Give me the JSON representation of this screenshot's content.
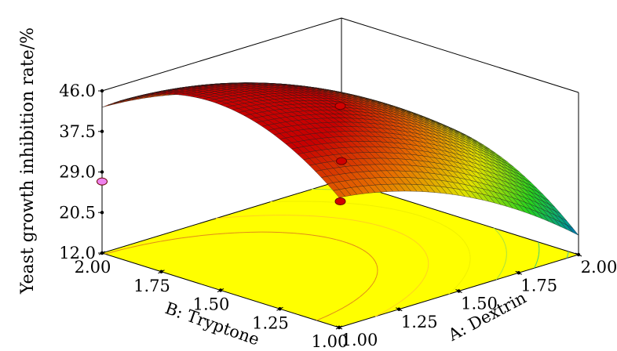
{
  "chart_data": {
    "type": "surface",
    "zlabel": "Yeast growth inhibition rate/%",
    "xlabel": "A: Dextrin",
    "ylabel": "B: Tryptone",
    "x_ticks": [
      "1.00",
      "1.25",
      "1.50",
      "1.75",
      "2.00"
    ],
    "y_ticks": [
      "1.00",
      "1.25",
      "1.50",
      "1.75",
      "2.00"
    ],
    "z_ticks": [
      "12.0",
      "20.5",
      "29.0",
      "37.5",
      "46.0"
    ],
    "xlim": [
      1.0,
      2.0
    ],
    "ylim": [
      1.0,
      2.0
    ],
    "zlim": [
      12.0,
      46.0
    ],
    "surface": {
      "model": "quadratic",
      "peak_value": 46.0,
      "corner_values": [
        {
          "A": 1.0,
          "B": 2.0,
          "z": 29.0
        },
        {
          "A": 1.0,
          "B": 1.0,
          "z": 41.0
        },
        {
          "A": 2.0,
          "B": 2.0,
          "z": 20.5
        },
        {
          "A": 2.0,
          "B": 1.0,
          "z": 14.0
        }
      ]
    },
    "design_points": [
      {
        "A": 1.5,
        "B": 1.5,
        "z": 43.0,
        "color": "#d10000"
      },
      {
        "A": 1.5,
        "B": 1.5,
        "z": 23.0,
        "color": "#d10000"
      },
      {
        "A": 2.0,
        "B": 2.0,
        "z": 16.0,
        "color": "#d10000"
      },
      {
        "A": 1.0,
        "B": 2.0,
        "z": 27.0,
        "color": "#ee82ee"
      }
    ],
    "colors": {
      "floor": "#ffff00",
      "surface_high": "#e00000",
      "surface_mid": "#e8e800",
      "surface_low": "#20d020",
      "surface_min": "#0000cc"
    }
  }
}
